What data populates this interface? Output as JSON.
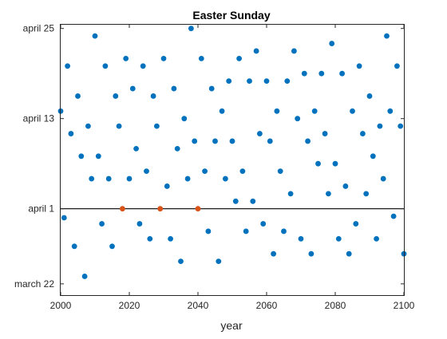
{
  "chart_data": {
    "type": "scatter",
    "title": "Easter Sunday",
    "xlabel": "year",
    "ylabel": "",
    "xlim": [
      2000,
      2100
    ],
    "ylim": [
      -10.5,
      25.5
    ],
    "x_ticks": [
      {
        "value": 2000,
        "label": "2000"
      },
      {
        "value": 2020,
        "label": "2020"
      },
      {
        "value": 2040,
        "label": "2040"
      },
      {
        "value": 2060,
        "label": "2060"
      },
      {
        "value": 2080,
        "label": "2080"
      },
      {
        "value": 2100,
        "label": "2100"
      }
    ],
    "y_ticks": [
      {
        "value": -9,
        "label": "march 22"
      },
      {
        "value": 1,
        "label": "april 1"
      },
      {
        "value": 13,
        "label": "april 13"
      },
      {
        "value": 25,
        "label": "april 25"
      }
    ],
    "reference_line": {
      "y": 1,
      "color": "#000000"
    },
    "grid": false,
    "series": [
      {
        "color": "#0072BD",
        "x": [
          2000,
          2001,
          2002,
          2003,
          2004,
          2005,
          2006,
          2007,
          2008,
          2009,
          2010,
          2011,
          2012,
          2013,
          2014,
          2015,
          2016,
          2017,
          2019,
          2020,
          2021,
          2022,
          2023,
          2024,
          2025,
          2026,
          2027,
          2028,
          2030,
          2031,
          2032,
          2033,
          2034,
          2035,
          2036,
          2037,
          2038,
          2039,
          2041,
          2042,
          2043,
          2044,
          2045,
          2046,
          2047,
          2048,
          2049,
          2050,
          2051,
          2052,
          2053,
          2054,
          2055,
          2056,
          2057,
          2058,
          2059,
          2060,
          2061,
          2062,
          2063,
          2064,
          2065,
          2066,
          2067,
          2068,
          2069,
          2070,
          2071,
          2072,
          2073,
          2074,
          2075,
          2076,
          2077,
          2078,
          2079,
          2080,
          2081,
          2082,
          2083,
          2084,
          2085,
          2086,
          2087,
          2088,
          2089,
          2090,
          2091,
          2092,
          2093,
          2094,
          2095,
          2096,
          2097,
          2098,
          2099,
          2100
        ],
        "y": [
          14,
          -0.2,
          20,
          11,
          -4,
          16,
          8,
          -8,
          12,
          5,
          24,
          8,
          -1,
          20,
          5,
          -4,
          16,
          12,
          21,
          5,
          17,
          9,
          -1,
          20,
          6,
          -3,
          16,
          12,
          21,
          4,
          -3,
          17,
          9,
          -6,
          13,
          5,
          25,
          10,
          21,
          6,
          -2,
          17,
          10,
          -6,
          14,
          5,
          18,
          10,
          2,
          21,
          6,
          -2,
          18,
          2,
          22,
          11,
          -1,
          18,
          10,
          -5,
          14,
          6,
          -2,
          18,
          3,
          22,
          13,
          -3,
          19,
          10,
          -5,
          14,
          7,
          19,
          11,
          3,
          23,
          7,
          -3,
          19,
          4,
          -5,
          14,
          -1,
          20,
          11,
          3,
          16,
          8,
          -3,
          12,
          5,
          24,
          14,
          0,
          20,
          12,
          -5
        ]
      },
      {
        "color": "#D95319",
        "x": [
          2018,
          2029,
          2040
        ],
        "y": [
          1,
          1,
          1
        ]
      }
    ]
  }
}
